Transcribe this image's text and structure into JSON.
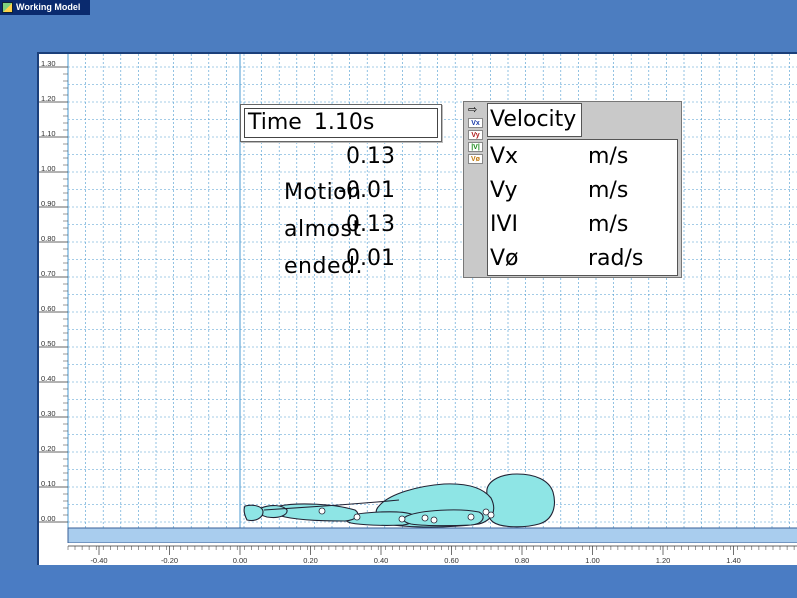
{
  "window": {
    "title": "Working Model"
  },
  "axes": {
    "y_labels": [
      "1.30",
      "1.20",
      "1.10",
      "1.00",
      "0.90",
      "0.80",
      "0.70",
      "0.60",
      "0.50",
      "0.40",
      "0.30",
      "0.20",
      "0.10",
      "0.00"
    ],
    "x_labels": [
      "-0.40",
      "-0.20",
      "0.00",
      "0.20",
      "0.40",
      "0.60",
      "0.80",
      "1.00",
      "1.20",
      "1.40"
    ]
  },
  "time_display": {
    "label": "Time",
    "value": "1.10s"
  },
  "annotation": {
    "lines": [
      "Motion",
      "almost",
      "ended."
    ]
  },
  "velocity_meter": {
    "title": "Velocity",
    "chips": [
      {
        "label": "Vx",
        "color": "#1a3aa8"
      },
      {
        "label": "Vy",
        "color": "#b02020"
      },
      {
        "label": "|V|",
        "color": "#1a8a1a"
      },
      {
        "label": "Vø",
        "color": "#c07a10"
      }
    ],
    "rows": [
      {
        "label": "Vx",
        "value": "0.13",
        "unit": "m/s"
      },
      {
        "label": "Vy",
        "value": "-0.01",
        "unit": "m/s"
      },
      {
        "label": "IVI",
        "value": "0.13",
        "unit": "m/s"
      },
      {
        "label": "Vø",
        "value": "0.01",
        "unit": "rad/s"
      }
    ]
  },
  "colors": {
    "desktop": "#4c7dc0",
    "grid": "#4a9ad0",
    "ground": "#a9cdee",
    "body_fill": "#8ee5e5",
    "body_stroke": "#223"
  }
}
